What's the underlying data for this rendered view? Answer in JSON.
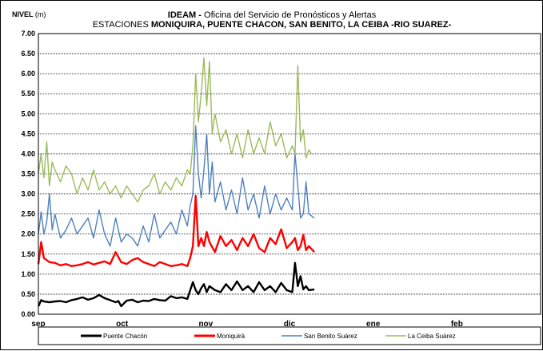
{
  "chart_data": {
    "type": "line",
    "title_bold": "IDEAM -",
    "title_rest": " Oficina del Servicio de Pronósticos y Alertas",
    "subtitle_prefix": "ESTACIONES ",
    "subtitle_bold": "MONIQUIRA, PUENTE CHACON, SAN BENITO, LA CEIBA  -RIO SUAREZ-",
    "ylabel": "NIVEL",
    "yunit": "(m)",
    "ylim": [
      0,
      7
    ],
    "yticks": [
      "0.00",
      "0.50",
      "1.00",
      "1.50",
      "2.00",
      "2.50",
      "3.00",
      "3.50",
      "4.00",
      "4.50",
      "5.00",
      "5.50",
      "6.00",
      "6.50",
      "7.00"
    ],
    "x_months": [
      "sep",
      "oct",
      "nov",
      "dic",
      "ene",
      "feb"
    ],
    "x_range_days": [
      0,
      182
    ],
    "grid": true,
    "legend_position": "bottom",
    "series": [
      {
        "name": "Puente Chacón",
        "color": "#000000",
        "x": [
          0,
          1,
          2,
          4,
          6,
          8,
          10,
          12,
          14,
          16,
          18,
          20,
          22,
          24,
          26,
          28,
          29,
          30,
          32,
          34,
          36,
          38,
          40,
          42,
          44,
          46,
          48,
          50,
          52,
          54,
          56,
          57,
          58,
          59,
          60,
          61,
          62,
          64,
          66,
          68,
          70,
          72,
          74,
          76,
          78,
          80,
          82,
          84,
          86,
          88,
          90,
          92,
          93,
          94,
          95,
          96,
          97,
          98,
          100
        ],
        "y": [
          0.2,
          0.35,
          0.32,
          0.3,
          0.32,
          0.33,
          0.3,
          0.35,
          0.38,
          0.42,
          0.36,
          0.4,
          0.48,
          0.4,
          0.35,
          0.3,
          0.33,
          0.2,
          0.34,
          0.36,
          0.3,
          0.34,
          0.33,
          0.38,
          0.35,
          0.34,
          0.45,
          0.4,
          0.42,
          0.38,
          0.8,
          0.6,
          0.5,
          0.65,
          0.75,
          0.55,
          0.7,
          0.6,
          0.55,
          0.75,
          0.6,
          0.82,
          0.6,
          0.7,
          0.55,
          0.8,
          0.6,
          0.7,
          0.55,
          0.78,
          0.6,
          0.55,
          1.28,
          0.7,
          0.95,
          0.62,
          0.7,
          0.6,
          0.62
        ]
      },
      {
        "name": "Moniquirá",
        "color": "#ff0000",
        "x": [
          0,
          1,
          2,
          4,
          6,
          8,
          10,
          12,
          14,
          16,
          18,
          20,
          22,
          24,
          26,
          28,
          30,
          32,
          34,
          36,
          38,
          40,
          42,
          44,
          46,
          48,
          50,
          52,
          54,
          55,
          56,
          57,
          58,
          59,
          60,
          61,
          62,
          64,
          66,
          68,
          70,
          72,
          74,
          76,
          78,
          80,
          82,
          84,
          86,
          88,
          90,
          92,
          93,
          94,
          95,
          96,
          97,
          98,
          100
        ],
        "y": [
          1.25,
          1.8,
          1.4,
          1.3,
          1.28,
          1.22,
          1.25,
          1.2,
          1.22,
          1.25,
          1.3,
          1.24,
          1.28,
          1.32,
          1.25,
          1.55,
          1.3,
          1.25,
          1.35,
          1.4,
          1.3,
          1.25,
          1.2,
          1.3,
          1.25,
          1.2,
          1.22,
          1.25,
          1.2,
          1.4,
          1.7,
          2.95,
          1.7,
          1.9,
          1.7,
          2.05,
          1.8,
          1.55,
          1.95,
          1.7,
          1.85,
          1.6,
          1.9,
          1.7,
          2.0,
          1.65,
          1.55,
          1.9,
          1.75,
          2.12,
          1.65,
          1.8,
          1.9,
          1.6,
          1.7,
          1.98,
          1.6,
          1.7,
          1.55
        ]
      },
      {
        "name": "San Benito  Suárez",
        "color": "#4f81bd",
        "x": [
          0,
          1,
          2,
          3,
          4,
          5,
          6,
          8,
          10,
          12,
          14,
          16,
          18,
          20,
          22,
          24,
          26,
          28,
          30,
          32,
          34,
          36,
          38,
          40,
          42,
          44,
          46,
          48,
          50,
          52,
          54,
          55,
          56,
          57,
          58,
          59,
          60,
          61,
          62,
          63,
          64,
          66,
          68,
          70,
          72,
          74,
          76,
          78,
          80,
          82,
          84,
          86,
          88,
          90,
          92,
          93,
          94,
          95,
          96,
          97,
          98,
          100
        ],
        "y": [
          2.0,
          2.55,
          2.0,
          2.3,
          3.0,
          2.1,
          2.5,
          1.9,
          2.1,
          2.4,
          2.0,
          2.2,
          2.4,
          1.9,
          2.6,
          2.0,
          1.7,
          2.4,
          1.8,
          2.0,
          1.9,
          1.7,
          2.2,
          1.8,
          2.5,
          1.9,
          2.1,
          2.3,
          2.0,
          2.6,
          2.2,
          2.7,
          3.0,
          4.7,
          3.5,
          2.9,
          3.6,
          4.5,
          3.0,
          3.8,
          2.8,
          3.3,
          2.6,
          3.1,
          2.5,
          3.4,
          2.6,
          3.0,
          2.4,
          3.2,
          2.5,
          3.0,
          2.6,
          2.9,
          2.6,
          4.0,
          3.2,
          2.4,
          2.5,
          3.3,
          2.5,
          2.4
        ]
      },
      {
        "name": "La Ceiba  Suárez",
        "color": "#9bbb59",
        "x": [
          0,
          1,
          2,
          3,
          4,
          5,
          6,
          8,
          10,
          12,
          14,
          16,
          18,
          20,
          22,
          24,
          26,
          28,
          30,
          32,
          34,
          36,
          38,
          40,
          42,
          44,
          46,
          48,
          50,
          52,
          54,
          55,
          56,
          57,
          58,
          59,
          60,
          61,
          62,
          63,
          64,
          66,
          68,
          70,
          72,
          74,
          76,
          78,
          80,
          82,
          84,
          86,
          88,
          90,
          92,
          93,
          94,
          95,
          96,
          97,
          98,
          99
        ],
        "y": [
          3.5,
          4.0,
          3.4,
          4.3,
          3.2,
          3.8,
          3.6,
          3.3,
          3.7,
          3.5,
          3.0,
          3.4,
          3.1,
          3.6,
          3.1,
          3.3,
          3.0,
          3.2,
          2.9,
          3.2,
          3.0,
          2.8,
          3.1,
          3.2,
          3.5,
          3.0,
          3.3,
          3.1,
          3.4,
          3.2,
          3.6,
          3.5,
          4.2,
          6.0,
          4.8,
          5.5,
          6.4,
          5.2,
          6.3,
          4.5,
          5.0,
          4.3,
          4.6,
          4.0,
          4.5,
          3.9,
          4.6,
          4.0,
          4.4,
          4.0,
          4.8,
          4.2,
          4.5,
          3.9,
          4.2,
          4.0,
          6.2,
          4.3,
          4.6,
          3.9,
          4.1,
          4.0
        ]
      }
    ]
  }
}
